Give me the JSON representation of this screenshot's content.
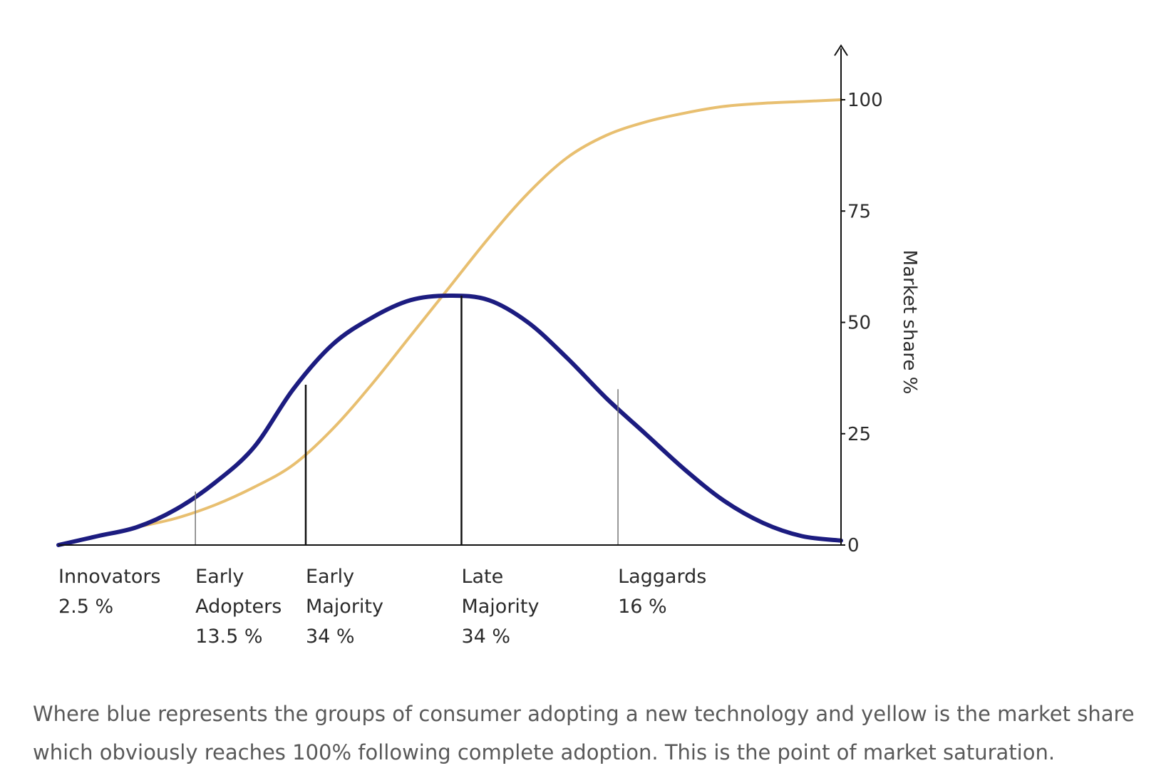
{
  "chart_data": {
    "type": "line",
    "x_range": [
      0,
      1000
    ],
    "ylim": [
      0,
      100
    ],
    "ylabel": "Market share %",
    "yticks": [
      0,
      25,
      50,
      75,
      100
    ],
    "grid": false,
    "series": [
      {
        "color": "#e8bf70",
        "points": [
          [
            0,
            0
          ],
          [
            50,
            2
          ],
          [
            100,
            4
          ],
          [
            150,
            6
          ],
          [
            200,
            9
          ],
          [
            250,
            13
          ],
          [
            300,
            18
          ],
          [
            350,
            26
          ],
          [
            400,
            36
          ],
          [
            450,
            47
          ],
          [
            500,
            58
          ],
          [
            550,
            69
          ],
          [
            600,
            79
          ],
          [
            650,
            87
          ],
          [
            700,
            92
          ],
          [
            750,
            95
          ],
          [
            800,
            97
          ],
          [
            850,
            98.5
          ],
          [
            900,
            99.2
          ],
          [
            950,
            99.6
          ],
          [
            1000,
            100
          ]
        ]
      },
      {
        "color": "#1c1c80",
        "points": [
          [
            0,
            0
          ],
          [
            50,
            2
          ],
          [
            100,
            4
          ],
          [
            150,
            8
          ],
          [
            200,
            14
          ],
          [
            250,
            22
          ],
          [
            300,
            35
          ],
          [
            350,
            45
          ],
          [
            400,
            51
          ],
          [
            450,
            55
          ],
          [
            500,
            56
          ],
          [
            550,
            55
          ],
          [
            600,
            50
          ],
          [
            650,
            42
          ],
          [
            700,
            33
          ],
          [
            750,
            25
          ],
          [
            800,
            17
          ],
          [
            850,
            10
          ],
          [
            900,
            5
          ],
          [
            950,
            2
          ],
          [
            1000,
            1
          ]
        ]
      }
    ],
    "segments": [
      {
        "lines": [
          "Innovators",
          "2.5 %"
        ],
        "x": 0
      },
      {
        "lines": [
          "Early",
          "Adopters",
          "13.5 %"
        ],
        "x": 175
      },
      {
        "lines": [
          "Early",
          "Majority",
          "34 %"
        ],
        "x": 316
      },
      {
        "lines": [
          "Late",
          "Majority",
          "34 %"
        ],
        "x": 515
      },
      {
        "lines": [
          "Laggards",
          "16 %"
        ],
        "x": 715
      }
    ],
    "dividers": [
      {
        "x": 175,
        "y": 12,
        "style": "thin"
      },
      {
        "x": 316,
        "y": 36,
        "style": "bold"
      },
      {
        "x": 515,
        "y": 56,
        "style": "bold"
      },
      {
        "x": 715,
        "y": 35,
        "style": "thin"
      }
    ]
  },
  "caption": "Where blue represents the groups of consumer adopting a new technology and yellow is the market share which obviously reaches 100% following complete adoption. This is the point of market saturation."
}
